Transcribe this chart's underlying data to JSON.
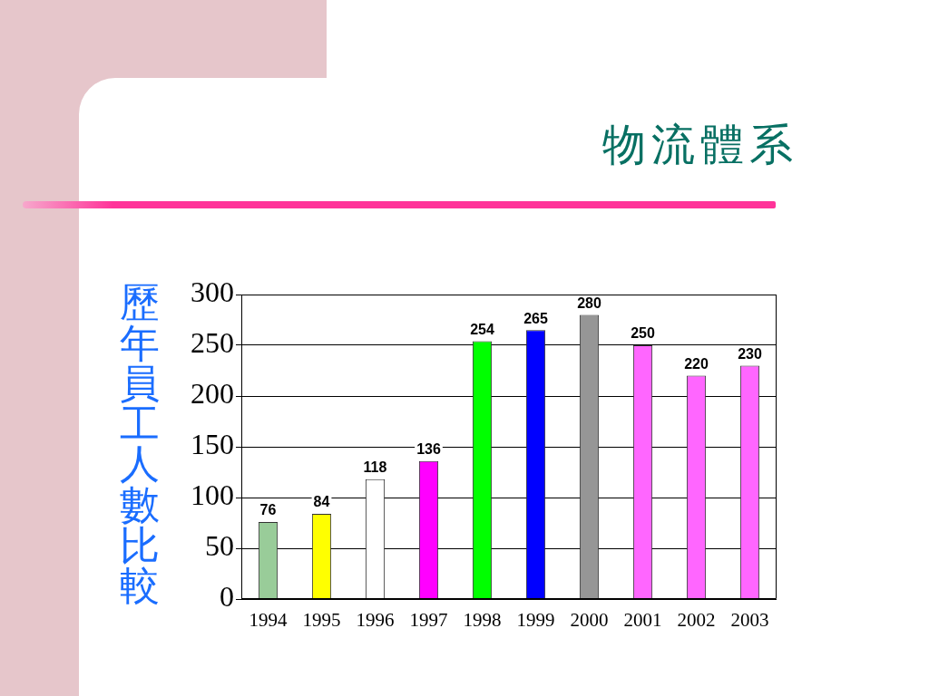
{
  "chart_data": {
    "type": "bar",
    "title": "物流體系",
    "ylabel": "歷年員工人數比較",
    "categories": [
      "1994",
      "1995",
      "1996",
      "1997",
      "1998",
      "1999",
      "2000",
      "2001",
      "2002",
      "2003"
    ],
    "values": [
      76,
      84,
      118,
      136,
      254,
      265,
      280,
      250,
      220,
      230
    ],
    "colors": [
      "#99cc99",
      "#ffff00",
      "#ffffff",
      "#ff00ff",
      "#00ff00",
      "#0000ff",
      "#969696",
      "#ff66ff",
      "#ff66ff",
      "#ff66ff"
    ],
    "ylim": [
      0,
      300
    ],
    "yticks": [
      0,
      50,
      100,
      150,
      200,
      250,
      300
    ],
    "grid": "y",
    "data_labels": true
  }
}
